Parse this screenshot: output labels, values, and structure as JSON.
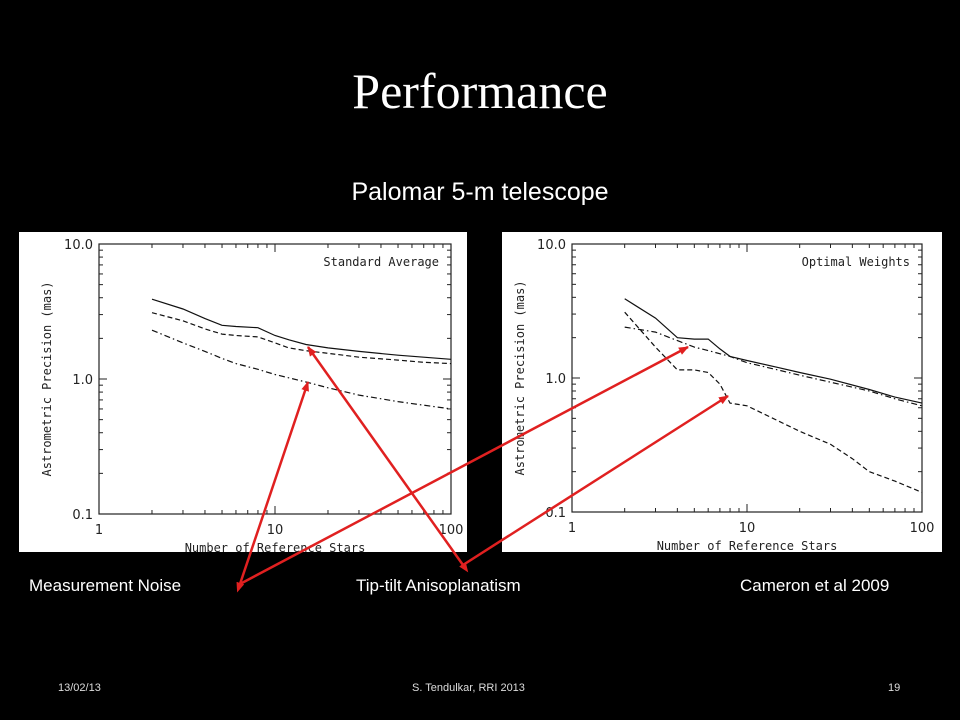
{
  "slide": {
    "title": "Performance",
    "subtitle": "Palomar 5-m telescope",
    "labels": {
      "measurement_noise": "Measurement Noise",
      "tiptilt": "Tip-tilt Anisoplanatism",
      "reference": "Cameron et al 2009"
    },
    "footer": {
      "date": "13/02/13",
      "author": "S. Tendulkar, RRI 2013",
      "page": "19"
    },
    "arrow_color": "#e02020"
  },
  "chart_data": [
    {
      "type": "line",
      "title": "Standard Average",
      "xlabel": "Number of Reference Stars",
      "ylabel": "Astrometric Precision (mas)",
      "xscale": "log",
      "yscale": "log",
      "xlim": [
        1,
        100
      ],
      "ylim": [
        0.1,
        10
      ],
      "xticks": [
        "1",
        "10",
        "100"
      ],
      "yticks": [
        "0.1",
        "1.0",
        "10.0"
      ],
      "series": [
        {
          "style": "solid",
          "x": [
            2,
            3,
            4,
            5,
            6,
            8,
            10,
            12,
            15,
            20,
            30,
            50,
            70,
            100
          ],
          "y": [
            3.9,
            3.3,
            2.8,
            2.5,
            2.45,
            2.4,
            2.1,
            1.95,
            1.8,
            1.7,
            1.6,
            1.5,
            1.45,
            1.4
          ]
        },
        {
          "style": "dashed",
          "x": [
            2,
            3,
            4,
            5,
            6,
            8,
            10,
            12,
            15,
            20,
            30,
            50,
            70,
            100
          ],
          "y": [
            3.1,
            2.7,
            2.35,
            2.15,
            2.1,
            2.05,
            1.85,
            1.7,
            1.62,
            1.55,
            1.45,
            1.38,
            1.33,
            1.3
          ]
        },
        {
          "style": "dash-dot",
          "x": [
            2,
            3,
            4,
            5,
            6,
            8,
            10,
            15,
            20,
            30,
            50,
            70,
            100
          ],
          "y": [
            2.3,
            1.85,
            1.6,
            1.42,
            1.3,
            1.18,
            1.08,
            0.95,
            0.86,
            0.76,
            0.68,
            0.64,
            0.6
          ]
        }
      ]
    },
    {
      "type": "line",
      "title": "Optimal Weights",
      "xlabel": "Number of Reference Stars",
      "ylabel": "Astrometric Precision (mas)",
      "xscale": "log",
      "yscale": "log",
      "xlim": [
        1,
        100
      ],
      "ylim": [
        0.1,
        10
      ],
      "xticks": [
        "1",
        "10",
        "100"
      ],
      "yticks": [
        "0.1",
        "1.0",
        "10.0"
      ],
      "series": [
        {
          "style": "solid",
          "x": [
            2,
            3,
            4,
            5,
            6,
            7,
            8,
            10,
            15,
            20,
            30,
            50,
            70,
            100
          ],
          "y": [
            3.9,
            2.8,
            2.0,
            1.95,
            1.95,
            1.65,
            1.45,
            1.35,
            1.2,
            1.1,
            0.98,
            0.82,
            0.72,
            0.65
          ]
        },
        {
          "style": "dash-dot",
          "x": [
            2,
            3,
            4,
            5,
            6,
            8,
            10,
            15,
            20,
            30,
            50,
            70,
            100
          ],
          "y": [
            2.4,
            2.2,
            1.9,
            1.7,
            1.6,
            1.45,
            1.3,
            1.15,
            1.05,
            0.93,
            0.8,
            0.7,
            0.62
          ]
        },
        {
          "style": "dashed",
          "x": [
            2,
            3,
            4,
            5,
            6,
            7,
            8,
            10,
            15,
            20,
            30,
            40,
            50,
            70,
            100
          ],
          "y": [
            3.1,
            1.7,
            1.15,
            1.15,
            1.1,
            0.9,
            0.65,
            0.62,
            0.48,
            0.4,
            0.32,
            0.25,
            0.2,
            0.17,
            0.14
          ]
        }
      ]
    }
  ]
}
